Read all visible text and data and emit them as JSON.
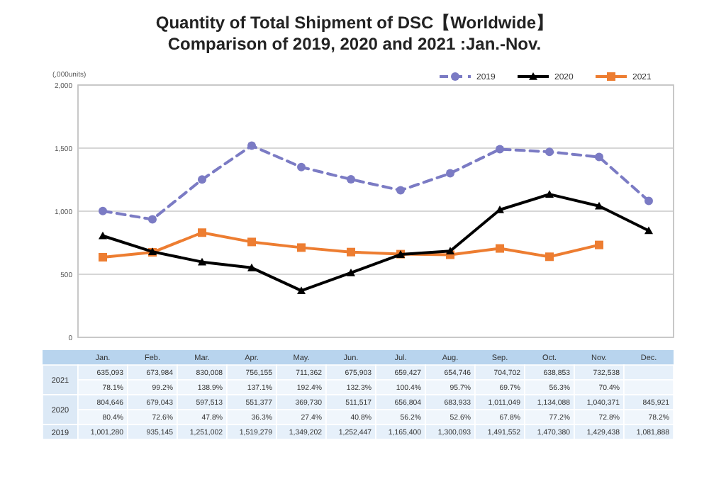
{
  "chart_data": {
    "type": "line",
    "title": "Quantity of Total Shipment of DSC【Worldwide】\nComparison of 2019, 2020 and 2021 :Jan.-Nov.",
    "ylabel": "(,000units)",
    "categories": [
      "Jan.",
      "Feb.",
      "Mar.",
      "Apr.",
      "May.",
      "Jun.",
      "Jul.",
      "Aug.",
      "Sep.",
      "Oct.",
      "Nov.",
      "Dec."
    ],
    "ylim": [
      0,
      2000
    ],
    "yticks": [
      0,
      500,
      {
        "value": 1000,
        "label": "1,000"
      },
      {
        "value": 1500,
        "label": "1,500"
      },
      {
        "value": 2000,
        "label": "2,000"
      }
    ],
    "grid": "y",
    "legend": "top right",
    "series": [
      {
        "name": "2019",
        "color": "#7b7bc4",
        "marker": "circle",
        "line_style": "dashed",
        "values": [
          1001.28,
          935.145,
          1251.002,
          1519.279,
          1349.202,
          1252.447,
          1165.4,
          1300.093,
          1491.552,
          1470.38,
          1429.438,
          1081.888
        ]
      },
      {
        "name": "2020",
        "color": "#000000",
        "marker": "triangle",
        "line_style": "solid",
        "values": [
          804.646,
          679.043,
          597.513,
          551.377,
          369.73,
          511.517,
          656.804,
          683.933,
          1011.049,
          1134.088,
          1040.371,
          845.921
        ]
      },
      {
        "name": "2021",
        "color": "#ed7d31",
        "marker": "square",
        "line_style": "solid",
        "values": [
          635.093,
          673.984,
          830.008,
          756.155,
          711.362,
          675.903,
          659.427,
          654.746,
          704.702,
          638.853,
          732.538,
          null
        ]
      }
    ],
    "annotations": [
      "635,093",
      "673,984",
      "830,008",
      "756,155",
      "711,362",
      "675,903",
      "659,427",
      "654,746",
      "704,702",
      "638,853",
      "732,538",
      "78.1%",
      "99.2%",
      "138.9%",
      "137.1%",
      "192.4%",
      "132.3%",
      "100.4%",
      "95.7%",
      "69.7%",
      "56.3%",
      "70.4%",
      "804,646",
      "679,043",
      "597,513",
      "551,377",
      "369,730",
      "511,517",
      "656,804",
      "683,933",
      "1,011,049",
      "1,134,088",
      "1,040,371",
      "845,921",
      "80.4%",
      "72.6%",
      "47.8%",
      "36.3%",
      "27.4%",
      "40.8%",
      "56.2%",
      "52.6%",
      "67.8%",
      "77.2%",
      "72.8%",
      "78.2%",
      "1,001,280",
      "935,145",
      "1,251,002",
      "1,519,279",
      "1,349,202",
      "1,252,447",
      "1,165,400",
      "1,300,093",
      "1,491,552",
      "1,470,380",
      "1,429,438",
      "1,081,888"
    ]
  }
}
